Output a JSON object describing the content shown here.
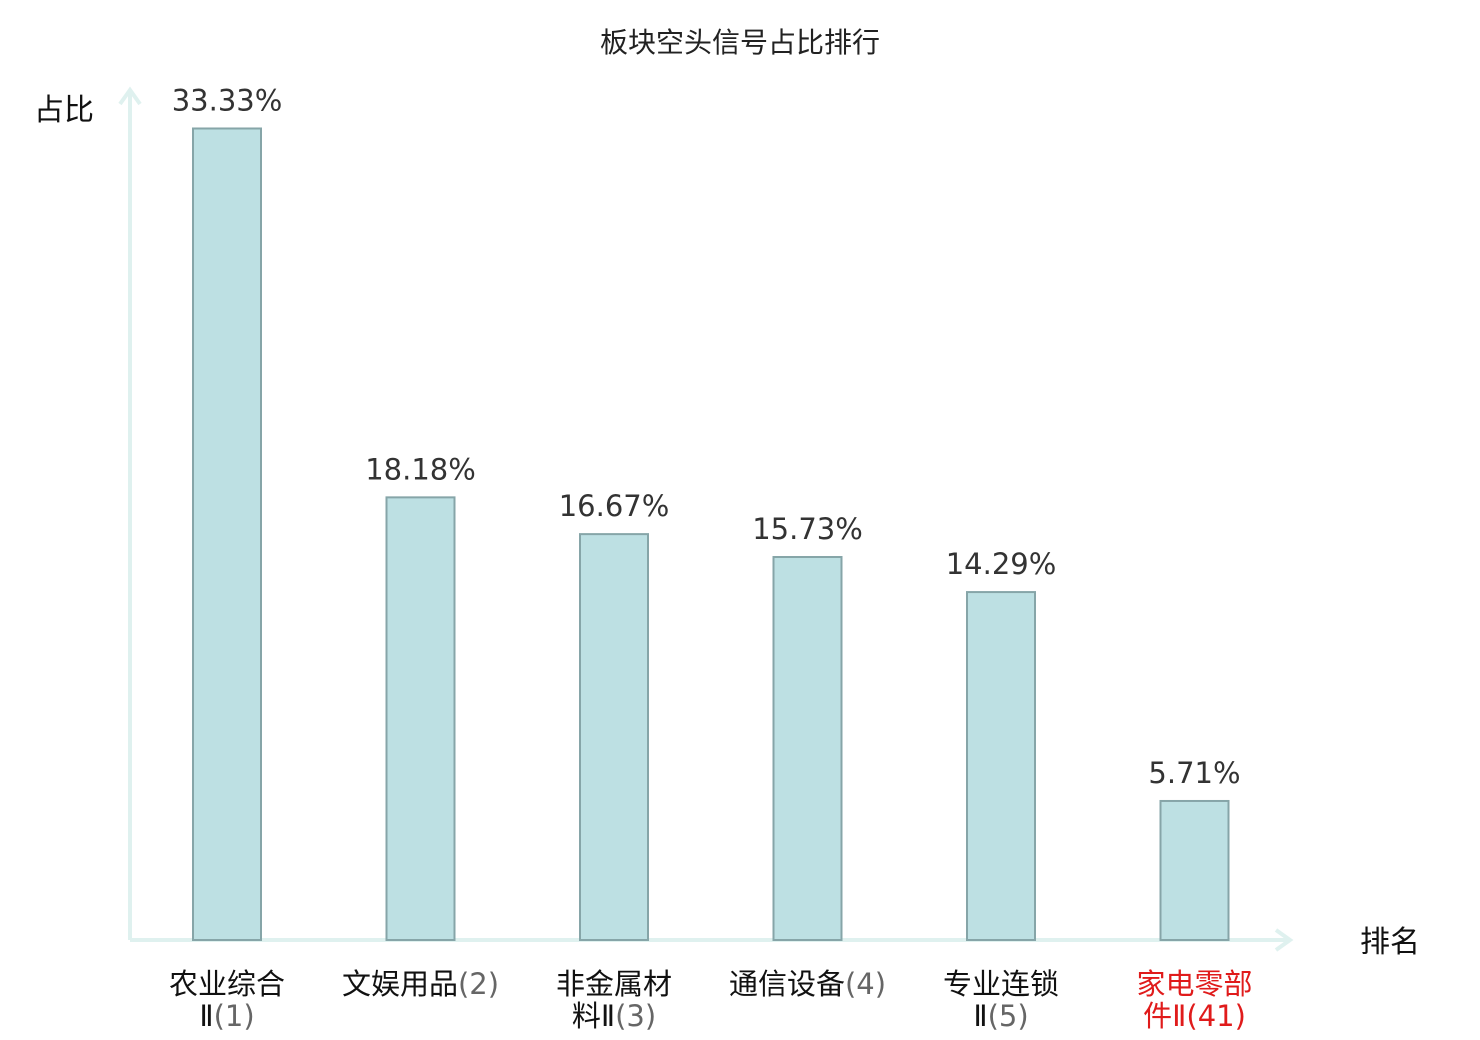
{
  "chart_data": {
    "type": "bar",
    "title": "板块空头信号占比排行",
    "ylabel": "占比",
    "xlabel": "排名",
    "ylim": [
      0,
      34.5
    ],
    "grid": false,
    "legend": "none",
    "categories": [
      {
        "lines": [
          "农业综合",
          "Ⅱ"
        ],
        "rank": "(1)",
        "highlight": false
      },
      {
        "lines": [
          "文娱用品"
        ],
        "rank": "(2)",
        "highlight": false
      },
      {
        "lines": [
          "非金属材",
          "料Ⅱ"
        ],
        "rank": "(3)",
        "highlight": false
      },
      {
        "lines": [
          "通信设备"
        ],
        "rank": "(4)",
        "highlight": false
      },
      {
        "lines": [
          "专业连锁",
          "Ⅱ"
        ],
        "rank": "(5)",
        "highlight": false
      },
      {
        "lines": [
          "家电零部",
          "件Ⅱ"
        ],
        "rank": "(41)",
        "highlight": true
      }
    ],
    "values": [
      33.33,
      18.18,
      16.67,
      15.73,
      14.29,
      5.71
    ],
    "value_labels": [
      "33.33%",
      "18.18%",
      "16.67%",
      "15.73%",
      "14.29%",
      "5.71%"
    ]
  },
  "colors": {
    "bar_fill": "#bde0e3",
    "bar_stroke": "#86a5a8",
    "axis": "#dff1ef",
    "highlight": "#e01b1b"
  }
}
